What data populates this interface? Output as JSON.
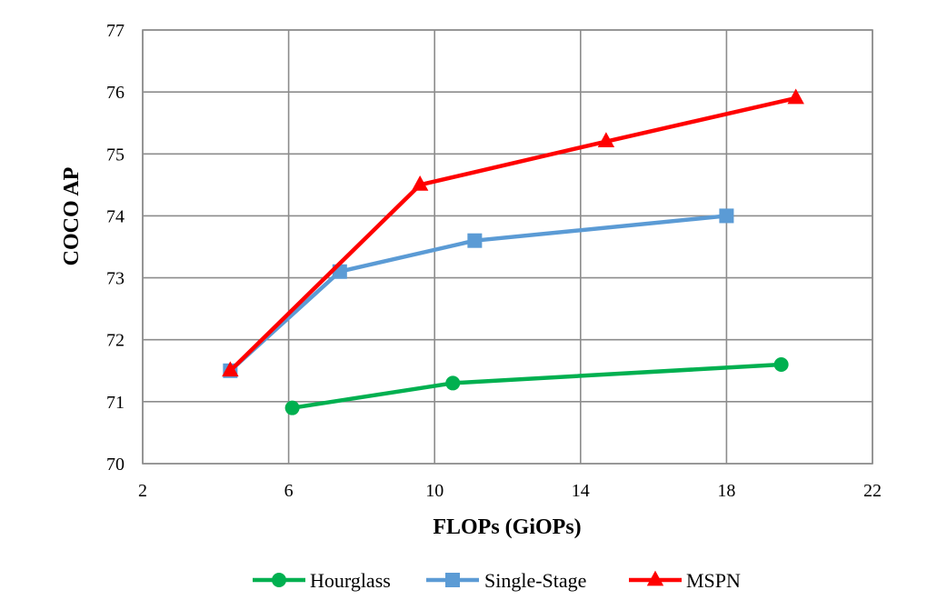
{
  "chart_data": {
    "type": "line",
    "title": "",
    "xlabel": "FLOPs (GiOPs)",
    "ylabel": "COCO AP",
    "xlim": [
      2,
      22
    ],
    "ylim": [
      70,
      77
    ],
    "xticks": [
      2,
      6,
      10,
      14,
      18,
      22
    ],
    "yticks": [
      70,
      71,
      72,
      73,
      74,
      75,
      76,
      77
    ],
    "grid": true,
    "legend_position": "bottom",
    "series": [
      {
        "name": "Hourglass",
        "color": "#00B050",
        "marker": "circle",
        "x": [
          6.1,
          10.5,
          19.5
        ],
        "y": [
          70.9,
          71.3,
          71.6
        ]
      },
      {
        "name": "Single-Stage",
        "color": "#5B9BD5",
        "marker": "square",
        "x": [
          4.4,
          7.4,
          11.1,
          18.0
        ],
        "y": [
          71.5,
          73.1,
          73.6,
          74.0
        ]
      },
      {
        "name": "MSPN",
        "color": "#FF0000",
        "marker": "triangle",
        "x": [
          4.4,
          9.6,
          14.7,
          19.9
        ],
        "y": [
          71.5,
          74.5,
          75.2,
          75.9
        ]
      }
    ]
  }
}
